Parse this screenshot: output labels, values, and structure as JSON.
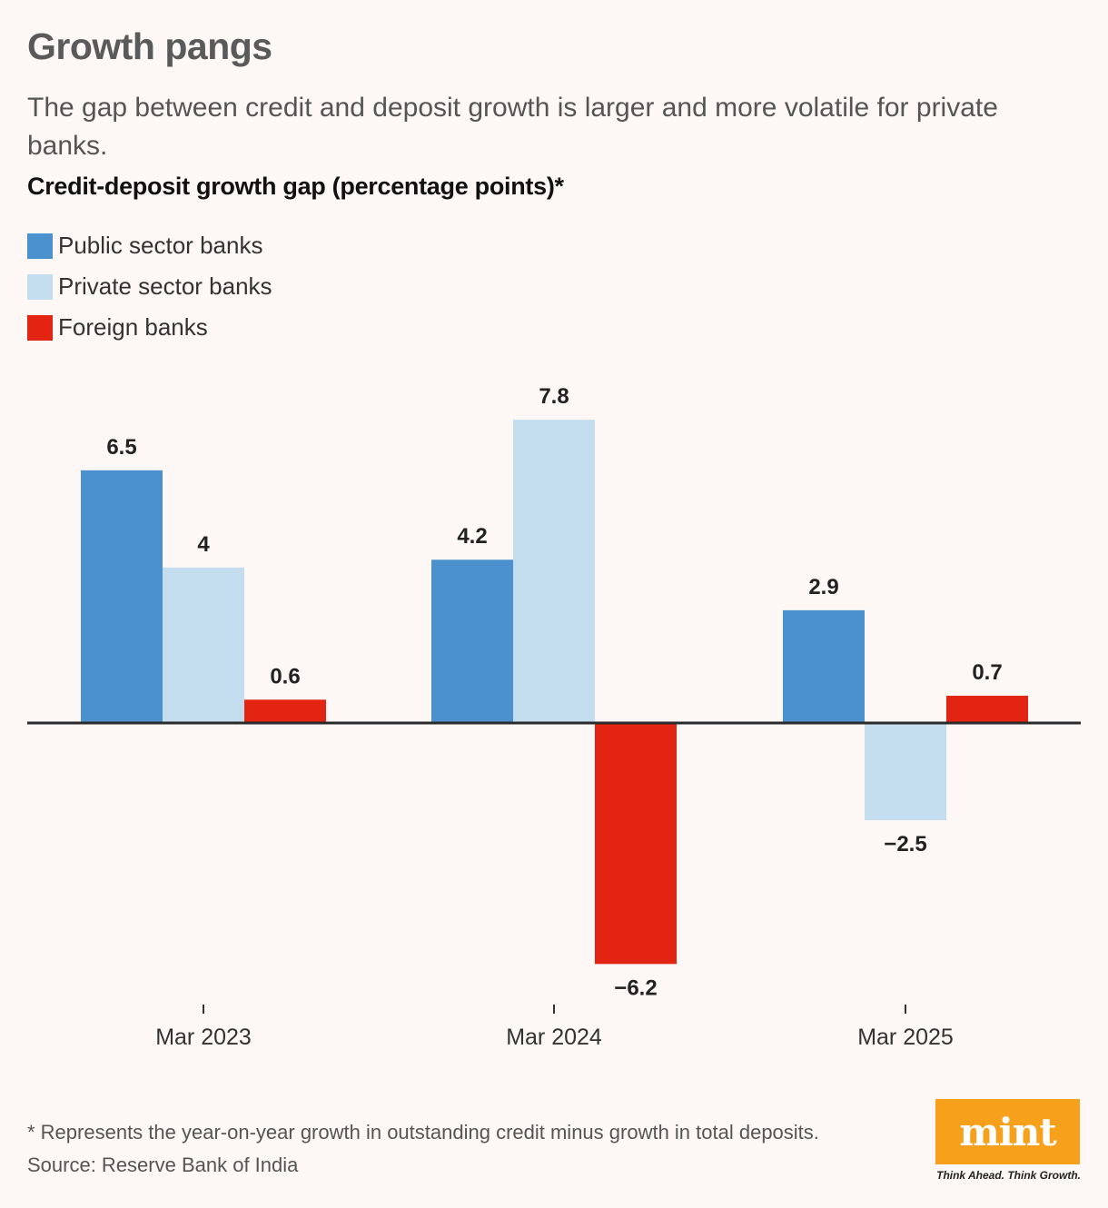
{
  "header": {
    "title": "Growth pangs",
    "subtitle": "The gap between credit and deposit growth is larger and more volatile for private banks.",
    "chart_label": "Credit-deposit growth gap (percentage points)*"
  },
  "colors": {
    "public": "#4b91cd",
    "private": "#c3ddef",
    "foreign": "#e32412",
    "baseline": "#2a2a2a",
    "logo_bg": "#f7a01c"
  },
  "chart_data": {
    "type": "bar",
    "title": "Credit-deposit growth gap (percentage points)*",
    "xlabel": "",
    "ylabel": "",
    "categories": [
      "Mar 2023",
      "Mar 2024",
      "Mar 2025"
    ],
    "series": [
      {
        "name": "Public sector banks",
        "key": "public",
        "values": [
          6.5,
          4.2,
          2.9
        ],
        "labels": [
          "6.5",
          "4.2",
          "2.9"
        ]
      },
      {
        "name": "Private sector banks",
        "key": "private",
        "values": [
          4,
          7.8,
          -2.5
        ],
        "labels": [
          "4",
          "7.8",
          "−2.5"
        ]
      },
      {
        "name": "Foreign banks",
        "key": "foreign",
        "values": [
          0.6,
          -6.2,
          0.7
        ],
        "labels": [
          "0.6",
          "−6.2",
          "0.7"
        ]
      }
    ],
    "ylim": [
      -6.2,
      7.8
    ],
    "grid": false,
    "legend": "top-left"
  },
  "footer": {
    "footnote": "* Represents the year-on-year growth in outstanding credit minus growth in total deposits.",
    "source": "Source: Reserve Bank of India",
    "logo": "mint",
    "tagline": "Think Ahead. Think Growth."
  }
}
